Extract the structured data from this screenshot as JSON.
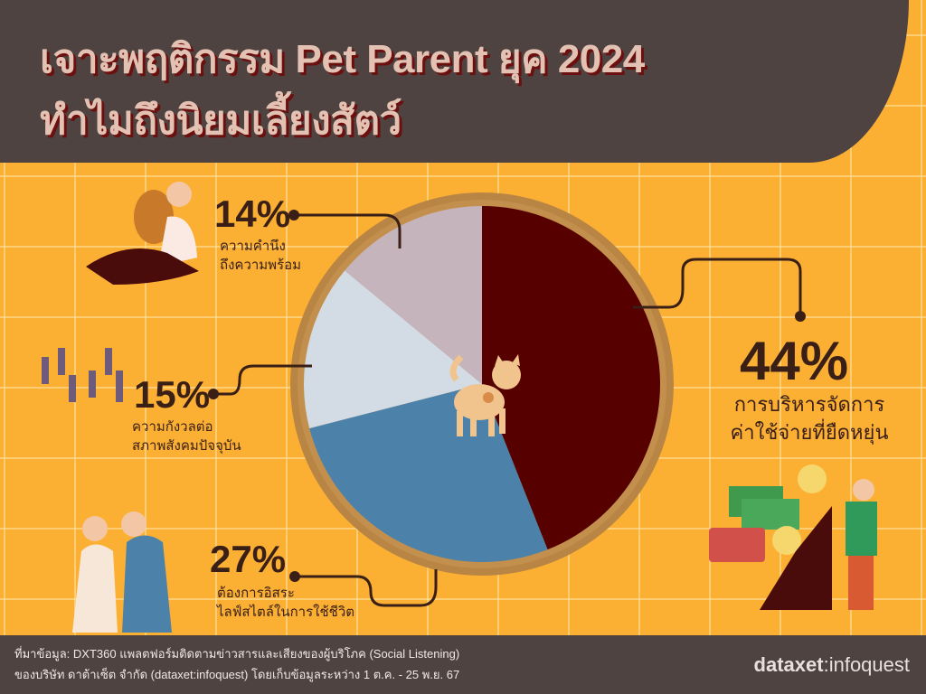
{
  "header": {
    "title_line1": "เจาะพฤติกรรม Pet Parent ยุค 2024",
    "title_line2": "ทำไมถึงนิยมเลี้ยงสัตว์"
  },
  "chart_data": {
    "type": "pie",
    "start": "top",
    "direction": "clockwise",
    "slices": [
      {
        "value": 44,
        "label": "44%",
        "caption": [
          "การบริหารจัดการ",
          "ค่าใช้จ่ายที่ยืดหยุ่น"
        ],
        "color": "#560000"
      },
      {
        "value": 27,
        "label": "27%",
        "caption": [
          "ต้องการอิสระ",
          "ไลฟ์สไตล์ในการใช้ชีวิต"
        ],
        "color": "#4c82aa"
      },
      {
        "value": 15,
        "label": "15%",
        "caption": [
          "ความกังวลต่อ",
          "สภาพสังคมปัจจุบัน"
        ],
        "color": "#d3dbe4"
      },
      {
        "value": 14,
        "label": "14%",
        "caption": [
          "ความคำนึง",
          "ถึงความพร้อม"
        ],
        "color": "#c6b4bc"
      }
    ],
    "ring_color": "#b98544"
  },
  "footer": {
    "source_line1": "ที่มาข้อมูล: DXT360 แพลตฟอร์มติดตามข่าวสารและเสียงของผู้บริโภค (Social Listening)",
    "source_line2": "ของบริษัท ดาต้าเซ็ต จำกัด (dataxet:infoquest) โดยเก็บข้อมูลระหว่าง 1 ต.ค. - 25 พ.ย. 67",
    "logo_bold": "dataxet",
    "logo_light": ":infoquest"
  },
  "colors": {
    "background": "#fbb034",
    "header": "#4e4340",
    "text": "#3a1f17"
  }
}
